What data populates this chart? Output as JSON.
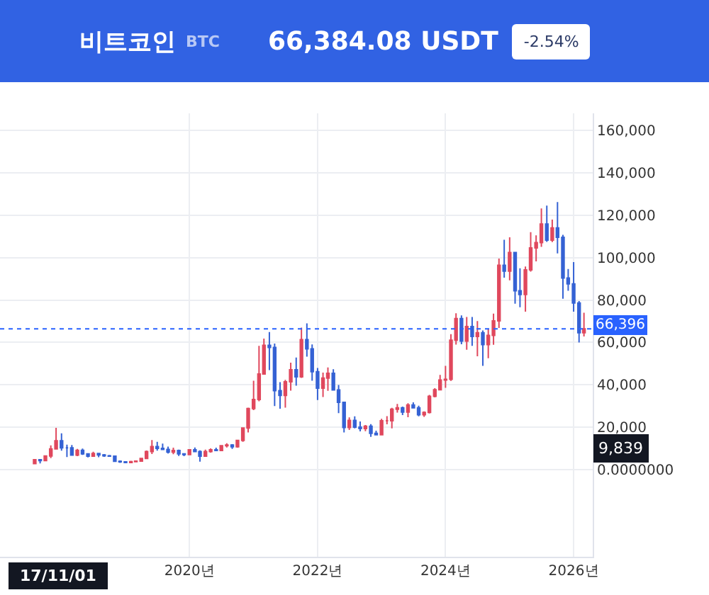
{
  "chart_data": {
    "type": "candlestick",
    "title": "비트코인",
    "subtitle": "BTC",
    "annotations": [
      "66,384.08 USDT",
      "-2.54%",
      "17/11/01",
      {
        "text": "9,839",
        "y": 9839
      }
    ],
    "x": [
      "2017-08",
      "2017-09",
      "2017-10",
      "2017-11",
      "2017-12",
      "2018-01",
      "2018-02",
      "2018-03",
      "2018-04",
      "2018-05",
      "2018-06",
      "2018-07",
      "2018-08",
      "2018-09",
      "2018-10",
      "2018-11",
      "2018-12",
      "2019-01",
      "2019-02",
      "2019-03",
      "2019-04",
      "2019-05",
      "2019-06",
      "2019-07",
      "2019-08",
      "2019-09",
      "2019-10",
      "2019-11",
      "2019-12",
      "2020-01",
      "2020-02",
      "2020-03",
      "2020-04",
      "2020-05",
      "2020-06",
      "2020-07",
      "2020-08",
      "2020-09",
      "2020-10",
      "2020-11",
      "2020-12",
      "2021-01",
      "2021-02",
      "2021-03",
      "2021-04",
      "2021-05",
      "2021-06",
      "2021-07",
      "2021-08",
      "2021-09",
      "2021-10",
      "2021-11",
      "2021-12",
      "2022-01",
      "2022-02",
      "2022-03",
      "2022-04",
      "2022-05",
      "2022-06",
      "2022-07",
      "2022-08",
      "2022-09",
      "2022-10",
      "2022-11",
      "2022-12",
      "2023-01",
      "2023-02",
      "2023-03",
      "2023-04",
      "2023-05",
      "2023-06",
      "2023-07",
      "2023-08",
      "2023-09",
      "2023-10",
      "2023-11",
      "2023-12",
      "2024-01",
      "2024-02",
      "2024-03",
      "2024-04",
      "2024-05",
      "2024-06",
      "2024-07",
      "2024-08",
      "2024-09",
      "2024-10",
      "2024-11",
      "2024-12",
      "2025-01",
      "2025-02",
      "2025-03",
      "2025-04",
      "2025-05",
      "2025-06",
      "2025-07",
      "2025-08",
      "2025-09",
      "2025-10",
      "2025-11",
      "2025-12",
      "2026-01",
      "2026-02",
      "2026-03"
    ],
    "ohlc": [
      [
        2900,
        4800,
        2600,
        4700
      ],
      [
        4700,
        5000,
        3000,
        4300
      ],
      [
        4300,
        6500,
        4100,
        6500
      ],
      [
        6500,
        11500,
        5500,
        9800
      ],
      [
        9800,
        19800,
        9500,
        13700
      ],
      [
        13700,
        17200,
        9000,
        10300
      ],
      [
        10300,
        11800,
        6000,
        10300
      ],
      [
        10300,
        11700,
        6600,
        6900
      ],
      [
        6900,
        9800,
        6400,
        9200
      ],
      [
        9200,
        10000,
        7000,
        7500
      ],
      [
        7500,
        7800,
        5800,
        6400
      ],
      [
        6400,
        8500,
        6100,
        7700
      ],
      [
        7700,
        7800,
        5900,
        7000
      ],
      [
        7000,
        7400,
        6100,
        6600
      ],
      [
        6600,
        7000,
        6200,
        6400
      ],
      [
        6400,
        6600,
        3700,
        4000
      ],
      [
        4000,
        4400,
        3200,
        3700
      ],
      [
        3700,
        4100,
        3300,
        3400
      ],
      [
        3400,
        4200,
        3400,
        3800
      ],
      [
        3800,
        4100,
        3700,
        4100
      ],
      [
        4100,
        5600,
        4100,
        5300
      ],
      [
        5300,
        9100,
        5200,
        8600
      ],
      [
        8600,
        14000,
        7400,
        10900
      ],
      [
        10900,
        13200,
        9000,
        10100
      ],
      [
        10100,
        12300,
        9300,
        9600
      ],
      [
        9600,
        10900,
        7700,
        8300
      ],
      [
        8300,
        10400,
        7300,
        9100
      ],
      [
        9100,
        9500,
        6500,
        7500
      ],
      [
        7500,
        7800,
        6400,
        7200
      ],
      [
        7200,
        9600,
        6900,
        9400
      ],
      [
        9400,
        10500,
        8400,
        8600
      ],
      [
        8600,
        9200,
        3800,
        6400
      ],
      [
        6400,
        9500,
        6200,
        8600
      ],
      [
        8600,
        10100,
        8100,
        9400
      ],
      [
        9400,
        10400,
        8800,
        9100
      ],
      [
        9100,
        11400,
        8900,
        11300
      ],
      [
        11300,
        12500,
        10500,
        11700
      ],
      [
        11700,
        12100,
        9800,
        10800
      ],
      [
        10800,
        14100,
        10400,
        13800
      ],
      [
        13800,
        19900,
        13200,
        19700
      ],
      [
        19700,
        29300,
        17600,
        28900
      ],
      [
        28900,
        42000,
        28100,
        33100
      ],
      [
        33100,
        58400,
        32300,
        45100
      ],
      [
        45100,
        61800,
        45000,
        58700
      ],
      [
        58700,
        64900,
        47000,
        57700
      ],
      [
        57700,
        59500,
        30000,
        37300
      ],
      [
        37300,
        41300,
        28800,
        35000
      ],
      [
        35000,
        42400,
        29300,
        41500
      ],
      [
        41500,
        50500,
        37300,
        47100
      ],
      [
        47100,
        52900,
        39600,
        43800
      ],
      [
        43800,
        67000,
        43300,
        61300
      ],
      [
        61300,
        69000,
        53300,
        57000
      ],
      [
        57000,
        59100,
        42000,
        46200
      ],
      [
        46200,
        48000,
        32900,
        38500
      ],
      [
        38500,
        45800,
        34300,
        43200
      ],
      [
        43200,
        48200,
        37200,
        45500
      ],
      [
        45500,
        47400,
        37600,
        37600
      ],
      [
        37600,
        40000,
        26700,
        31800
      ],
      [
        31800,
        32000,
        17600,
        19900
      ],
      [
        19900,
        24700,
        18800,
        23300
      ],
      [
        23300,
        25200,
        19500,
        20100
      ],
      [
        20100,
        22800,
        18100,
        19400
      ],
      [
        19400,
        21100,
        18200,
        20500
      ],
      [
        20500,
        21500,
        15500,
        17200
      ],
      [
        17200,
        18400,
        16300,
        16500
      ],
      [
        16500,
        24000,
        16500,
        23100
      ],
      [
        23100,
        25300,
        21400,
        23100
      ],
      [
        23100,
        29200,
        19500,
        28500
      ],
      [
        28500,
        31000,
        26900,
        29200
      ],
      [
        29200,
        29800,
        25800,
        27200
      ],
      [
        27200,
        31400,
        24800,
        30500
      ],
      [
        30500,
        31800,
        28900,
        29200
      ],
      [
        29200,
        30200,
        25200,
        25900
      ],
      [
        25900,
        27500,
        24900,
        27000
      ],
      [
        27000,
        35300,
        26500,
        34600
      ],
      [
        34600,
        38500,
        34100,
        37700
      ],
      [
        37700,
        44700,
        37600,
        42300
      ],
      [
        42300,
        49000,
        38600,
        42600
      ],
      [
        42600,
        63900,
        41900,
        61100
      ],
      [
        61100,
        73800,
        59000,
        71300
      ],
      [
        71300,
        72800,
        59200,
        60700
      ],
      [
        60700,
        72000,
        56600,
        67500
      ],
      [
        67500,
        72000,
        58400,
        62800
      ],
      [
        62800,
        70100,
        53500,
        64600
      ],
      [
        64600,
        65700,
        49000,
        59000
      ],
      [
        59000,
        66500,
        52600,
        63300
      ],
      [
        63300,
        73600,
        58900,
        70200
      ],
      [
        70200,
        99600,
        66800,
        96400
      ],
      [
        96400,
        108400,
        90500,
        93600
      ],
      [
        93600,
        109600,
        89300,
        102400
      ],
      [
        102400,
        102500,
        78300,
        84400
      ],
      [
        84400,
        95000,
        76600,
        82600
      ],
      [
        82600,
        95800,
        74500,
        94200
      ],
      [
        94200,
        112000,
        93400,
        104600
      ],
      [
        104600,
        110500,
        98200,
        107100
      ],
      [
        107100,
        123200,
        105100,
        115800
      ],
      [
        115800,
        124500,
        107400,
        108200
      ],
      [
        108200,
        117900,
        107300,
        114000
      ],
      [
        114000,
        126200,
        102000,
        109600
      ],
      [
        109600,
        110700,
        80600,
        90400
      ],
      [
        90400,
        94600,
        84400,
        87600
      ],
      [
        87600,
        97900,
        74500,
        78600
      ],
      [
        78600,
        79500,
        60000,
        64600
      ],
      [
        64600,
        74000,
        62800,
        66400
      ]
    ],
    "xlim": [
      "2017-01-15",
      "2026-04-20"
    ],
    "xticks": [
      {
        "value": "2020-01-01",
        "label": "2020년"
      },
      {
        "value": "2022-01-01",
        "label": "2022년"
      },
      {
        "value": "2024-01-01",
        "label": "2024년"
      },
      {
        "value": "2026-01-01",
        "label": "2026년"
      }
    ],
    "ylim": [
      -41000,
      168000
    ],
    "yticks": [
      {
        "value": 0,
        "label": "0.0000000"
      },
      {
        "value": 20000,
        "label": "20,000"
      },
      {
        "value": 40000,
        "label": "40,000"
      },
      {
        "value": 60000,
        "label": "60,000"
      },
      {
        "value": 80000,
        "label": "80,000"
      },
      {
        "value": 100000,
        "label": "100,000"
      },
      {
        "value": 120000,
        "label": "120,000"
      },
      {
        "value": 140000,
        "label": "140,000"
      },
      {
        "value": 160000,
        "label": "160,000"
      }
    ],
    "ref_lines": [
      {
        "axis": "y",
        "value": 66396,
        "label": "66,396",
        "color": "#2962ff",
        "line_style": "dotted"
      }
    ],
    "grid": true
  }
}
